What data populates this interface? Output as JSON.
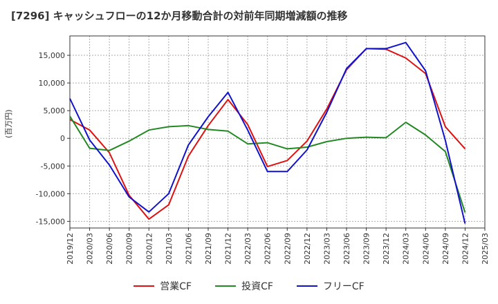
{
  "chart_data": {
    "type": "line",
    "title": "[7296]  キャッシュフローの12か月移動合計の対前年同期増減額の推移",
    "ylabel": "(百万円)",
    "xlabel": "",
    "x": [
      "2019/12",
      "2020/03",
      "2020/06",
      "2020/09",
      "2020/12",
      "2021/03",
      "2021/06",
      "2021/09",
      "2021/12",
      "2022/03",
      "2022/06",
      "2022/09",
      "2022/12",
      "2023/03",
      "2023/06",
      "2023/09",
      "2023/12",
      "2024/03",
      "2024/06",
      "2024/09",
      "2024/12",
      "2025/03"
    ],
    "y_ticks": [
      15000,
      10000,
      5000,
      0,
      -5000,
      -10000,
      -15000
    ],
    "y_tick_labels": [
      "15,000",
      "10,000",
      "5,000",
      "0",
      "-5,000",
      "-10,000",
      "-15,000"
    ],
    "ylim": [
      -16200,
      18500
    ],
    "grid": true,
    "legend_position": "bottom",
    "series": [
      {
        "name": "営業CF",
        "color": "#dd1111",
        "values": [
          3400,
          1500,
          -2600,
          -10300,
          -14600,
          -12000,
          -3200,
          2300,
          7000,
          2500,
          -5100,
          -4000,
          -500,
          5300,
          12400,
          16200,
          16100,
          14500,
          11700,
          2100,
          -1900,
          null
        ]
      },
      {
        "name": "投資CF",
        "color": "#228822",
        "values": [
          4000,
          -1800,
          -2200,
          -500,
          1500,
          2100,
          2300,
          1600,
          1300,
          -1000,
          -800,
          -1900,
          -1600,
          -600,
          0,
          200,
          100,
          2900,
          600,
          -2400,
          -13400,
          null
        ]
      },
      {
        "name": "フリーCF",
        "color": "#1111cc",
        "values": [
          7200,
          -300,
          -4800,
          -10600,
          -13300,
          -10000,
          -1200,
          3900,
          8300,
          1500,
          -6000,
          -6000,
          -2100,
          4700,
          12600,
          16200,
          16200,
          17300,
          12200,
          -400,
          -15400,
          null
        ]
      }
    ]
  }
}
